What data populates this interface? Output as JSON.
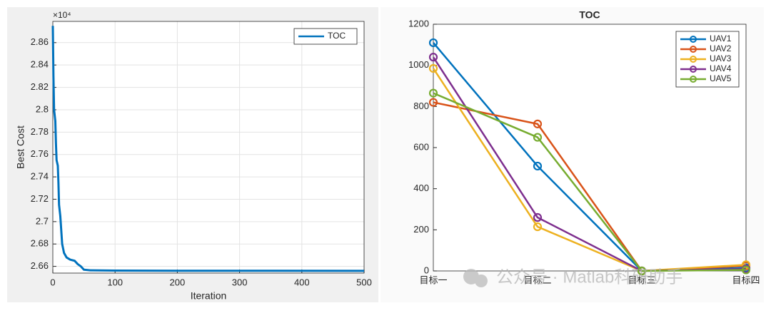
{
  "chart_data": [
    {
      "type": "line",
      "x_label": "Iteration",
      "y_label": "Best Cost",
      "y_exponent": "×10⁴",
      "x": [
        0,
        1,
        2,
        4,
        5,
        6,
        8,
        9,
        10,
        12,
        15,
        18,
        22,
        28,
        35,
        40,
        45,
        50,
        60,
        100,
        200,
        500
      ],
      "series": [
        {
          "name": "TOC",
          "color": "#0072BD",
          "values": [
            2.875,
            2.83,
            2.8,
            2.79,
            2.77,
            2.755,
            2.75,
            2.735,
            2.715,
            2.705,
            2.68,
            2.672,
            2.668,
            2.666,
            2.665,
            2.662,
            2.66,
            2.657,
            2.6565,
            2.6562,
            2.6561,
            2.656
          ]
        }
      ],
      "xlim": [
        0,
        500
      ],
      "xticks": [
        0,
        100,
        200,
        300,
        400,
        500
      ],
      "ylim": [
        2.654,
        2.879
      ],
      "yticks": [
        2.66,
        2.68,
        2.7,
        2.72,
        2.74,
        2.76,
        2.78,
        2.8,
        2.82,
        2.84,
        2.86
      ],
      "grid": true,
      "legend": "upper right"
    },
    {
      "type": "line",
      "title": "TOC",
      "marker": "circle",
      "categories": [
        "目标一",
        "目标二",
        "目标三",
        "目标四"
      ],
      "series": [
        {
          "name": "UAV1",
          "color": "#0072BD",
          "values": [
            1110,
            510,
            0,
            15
          ]
        },
        {
          "name": "UAV2",
          "color": "#D95319",
          "values": [
            820,
            715,
            0,
            25
          ]
        },
        {
          "name": "UAV3",
          "color": "#EDB120",
          "values": [
            985,
            215,
            0,
            30
          ]
        },
        {
          "name": "UAV4",
          "color": "#7E2F8E",
          "values": [
            1040,
            260,
            0,
            10
          ]
        },
        {
          "name": "UAV5",
          "color": "#77AC30",
          "values": [
            865,
            650,
            0,
            5
          ]
        }
      ],
      "ylim": [
        0,
        1200
      ],
      "yticks": [
        0,
        200,
        400,
        600,
        800,
        1000,
        1200
      ],
      "grid": false,
      "legend": "upper right"
    }
  ],
  "watermark": "公众号 · Matlab科研助手"
}
